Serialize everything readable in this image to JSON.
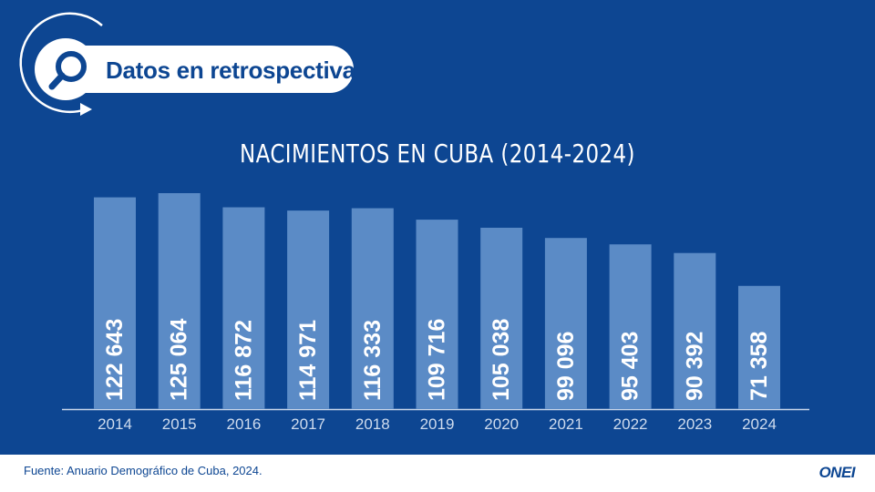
{
  "header": {
    "badge_title": "Datos en retrospectiva",
    "icon": "magnifier-icon"
  },
  "chart_data": {
    "type": "bar",
    "title": "NACIMIENTOS EN CUBA (2014-2024)",
    "categories": [
      "2014",
      "2015",
      "2016",
      "2017",
      "2018",
      "2019",
      "2020",
      "2021",
      "2022",
      "2023",
      "2024"
    ],
    "values": [
      122643,
      125064,
      116872,
      114971,
      116333,
      109716,
      105038,
      99096,
      95403,
      90392,
      71358
    ],
    "value_labels": [
      "122 643",
      "125 064",
      "116 872",
      "114 971",
      "116 333",
      "109 716",
      "105 038",
      "99 096",
      "95 403",
      "90 392",
      "71 358"
    ],
    "xlabel": "",
    "ylabel": "",
    "ylim": [
      0,
      130000
    ],
    "grid": false,
    "legend": "none",
    "colors": {
      "background": "#0d4692",
      "bar": "#5b8bc6",
      "text": "#ffffff",
      "axis": "#c8d6ea",
      "tick": "#cfdcee"
    }
  },
  "footer": {
    "source": "Fuente: Anuario Demográfico de Cuba, 2024.",
    "logo": "ONEI"
  }
}
